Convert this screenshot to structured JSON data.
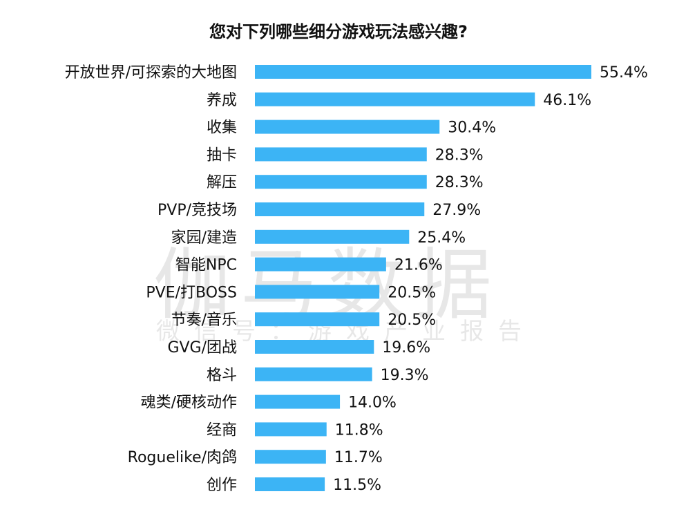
{
  "watermark": {
    "brand": "伽马数据",
    "sub": "微信号：游戏产业报告"
  },
  "chart_data": {
    "type": "bar",
    "orientation": "horizontal",
    "title": "您对下列哪些细分游戏玩法感兴趣?",
    "categories": [
      "开放世界/可探索的大地图",
      "养成",
      "收集",
      "抽卡",
      "解压",
      "PVP/竞技场",
      "家园/建造",
      "智能NPC",
      "PVE/打BOSS",
      "节奏/音乐",
      "GVG/团战",
      "格斗",
      "魂类/硬核动作",
      "经商",
      "Roguelike/肉鸽",
      "创作"
    ],
    "values": [
      55.4,
      46.1,
      30.4,
      28.3,
      28.3,
      27.9,
      25.4,
      21.6,
      20.5,
      20.5,
      19.6,
      19.3,
      14.0,
      11.8,
      11.7,
      11.5
    ],
    "value_labels": [
      "55.4%",
      "46.1%",
      "30.4%",
      "28.3%",
      "28.3%",
      "27.9%",
      "25.4%",
      "21.6%",
      "20.5%",
      "20.5%",
      "19.6%",
      "19.3%",
      "14.0%",
      "11.8%",
      "11.7%",
      "11.5%"
    ],
    "bar_color": "#3cb4f5",
    "grid": false,
    "legend": "none"
  }
}
